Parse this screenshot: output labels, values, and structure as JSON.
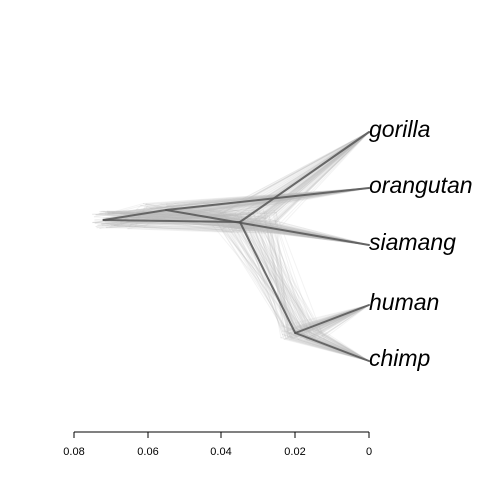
{
  "figure": {
    "type": "densitree",
    "description_title": "",
    "axis": {
      "ticks": [
        {
          "value": 0.08,
          "label": "0.08"
        },
        {
          "value": 0.06,
          "label": "0.06"
        },
        {
          "value": 0.04,
          "label": "0.04"
        },
        {
          "value": 0.02,
          "label": "0.02"
        },
        {
          "value": 0.0,
          "label": "0"
        }
      ],
      "range": [
        0.08,
        0.0
      ]
    },
    "taxa": [
      {
        "key": "gorilla",
        "label": "gorilla"
      },
      {
        "key": "orangutan",
        "label": "orangutan"
      },
      {
        "key": "siamang",
        "label": "siamang"
      },
      {
        "key": "human",
        "label": "human"
      },
      {
        "key": "chimp",
        "label": "chimp"
      }
    ],
    "consensus_tree": {
      "root_age": 0.072,
      "nodes": [
        {
          "id": "root",
          "age": 0.072,
          "children": [
            "A",
            "B"
          ]
        },
        {
          "id": "A",
          "age": 0.055,
          "children": [
            "orangutan",
            "siamang"
          ]
        },
        {
          "id": "B",
          "age": 0.035,
          "children": [
            "gorilla",
            "C"
          ]
        },
        {
          "id": "C",
          "age": 0.02,
          "children": [
            "human",
            "chimp"
          ]
        }
      ]
    },
    "colors": {
      "tree_lines": "#bdbdbd",
      "consensus_lines": "#555555",
      "axis": "#000000",
      "text": "#000000"
    }
  }
}
